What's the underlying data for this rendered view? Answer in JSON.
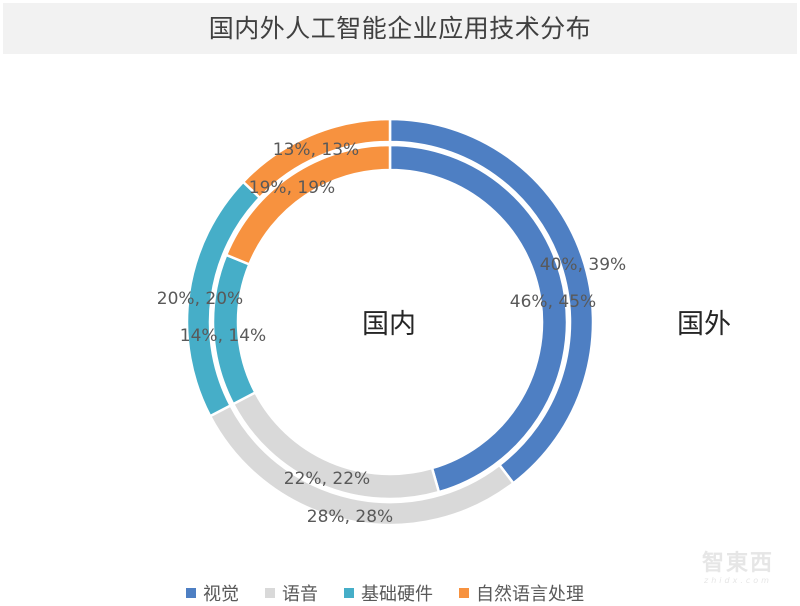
{
  "title": "国内外人工智能企业应用技术分布",
  "rings": {
    "inner_label": "国内",
    "outer_label": "国外"
  },
  "labels": {
    "vision_outer": "40%, 39%",
    "vision_inner": "46%, 45%",
    "speech_inner": "22%, 22%",
    "speech_outer": "28%, 28%",
    "hardware_outer": "20%, 20%",
    "hardware_inner": "14%, 14%",
    "nlp_outer": "13%, 13%",
    "nlp_inner": "19%, 19%"
  },
  "legend": [
    {
      "label": "视觉",
      "color": "#4e7fc3"
    },
    {
      "label": "语音",
      "color": "#d9d9d9"
    },
    {
      "label": "基础硬件",
      "color": "#46aec8"
    },
    {
      "label": "自然语言处理",
      "color": "#f7923f"
    }
  ],
  "watermark": {
    "main": "智東西",
    "sub": "zhidx.com"
  },
  "chart_data": {
    "type": "pie",
    "subtype": "doughnut",
    "title": "国内外人工智能企业应用技术分布",
    "categories": [
      "视觉",
      "语音",
      "基础硬件",
      "自然语言处理"
    ],
    "colors": [
      "#4e7fc3",
      "#d9d9d9",
      "#46aec8",
      "#f7923f"
    ],
    "series": [
      {
        "name": "国内",
        "ring": "inner",
        "values": [
          46,
          22,
          14,
          19
        ],
        "labels": [
          "46%, 45%",
          "22%, 22%",
          "14%, 14%",
          "19%, 19%"
        ]
      },
      {
        "name": "国外",
        "ring": "outer",
        "values": [
          40,
          28,
          20,
          13
        ],
        "labels": [
          "40%, 39%",
          "28%, 28%",
          "20%, 20%",
          "13%, 13%"
        ]
      }
    ],
    "start_angle": 0,
    "direction": "clockwise",
    "legend_position": "bottom"
  }
}
